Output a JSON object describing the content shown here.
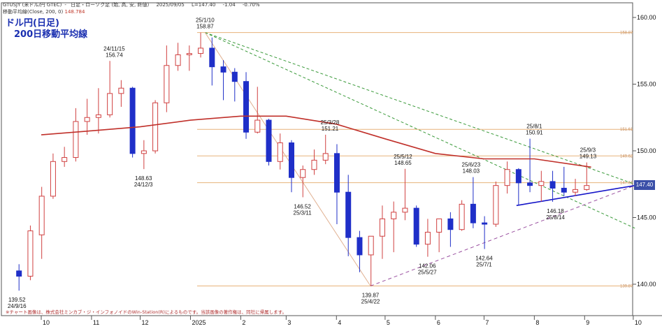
{
  "header": {
    "line1": [
      "GTUSJY (米ドル/円 GTEC)",
      "日足・ローソク足 (始, 高, 安, 終値)",
      "2025/09/05",
      "L=147.40",
      "-1.04",
      "-0.70%"
    ],
    "line2_label": "移動平均線(Close, 200, 0)",
    "line2_value": "148.784"
  },
  "title": {
    "line1": "ドル円(日足)",
    "line2": "200日移動平均線"
  },
  "footnote": "※チャート画像は、株式会社ミンカブ・ジ・インフォノイドのWin-Station(R)によるものです。当該画像の著作権は、同社に帰属します。",
  "last_price_label": "147.40",
  "colors": {
    "up": "#d04040",
    "down": "#1f2fc8",
    "ma": "#c0302a",
    "hline": "#e7b27a",
    "trend_green": "#3a9a3a",
    "trend_purple": "#9a50a0",
    "trend_blue": "#1515c8",
    "trend_tan": "#e0b090"
  },
  "chart_data": {
    "type": "candlestick",
    "x_ticks": [
      "10",
      "11",
      "12",
      "2025",
      "2",
      "3",
      "4",
      "5",
      "6",
      "7",
      "8",
      "9",
      "10"
    ],
    "y_ticks": [
      "160.00",
      "155.00",
      "150.00",
      "145.00",
      "140.00"
    ],
    "ylim": [
      138.5,
      161.5
    ],
    "hlines": [
      {
        "value": 158.87,
        "label": "158.87"
      },
      {
        "value": 151.61,
        "label": "151.61"
      },
      {
        "value": 149.62,
        "label": "149.62"
      },
      {
        "value": 147.61,
        "label": "147.61"
      },
      {
        "value": 139.87,
        "label": "139.87"
      }
    ],
    "annotations": [
      {
        "date": "24/9/16",
        "price": "139.52"
      },
      {
        "date": "24/11/15",
        "price": "156.74"
      },
      {
        "date": "24/12/3",
        "price": "148.63"
      },
      {
        "date": "25/1/10",
        "price": "158.87"
      },
      {
        "date": "25/3/11",
        "price": "146.52"
      },
      {
        "date": "25/3/28",
        "price": "151.21"
      },
      {
        "date": "25/4/22",
        "price": "139.87"
      },
      {
        "date": "25/5/12",
        "price": "148.65"
      },
      {
        "date": "25/5/27",
        "price": "142.06"
      },
      {
        "date": "25/6/23",
        "price": "148.03"
      },
      {
        "date": "25/7/1",
        "price": "142.64"
      },
      {
        "date": "25/8/1",
        "price": "150.91"
      },
      {
        "date": "25/8/14",
        "price": "146.18"
      },
      {
        "date": "25/9/3",
        "price": "149.13"
      }
    ],
    "series": [
      {
        "name": "移動平均線(Close, 200, 0)",
        "values": [
          {
            "date": "2024-10-01",
            "value": 151.2
          },
          {
            "date": "2024-11-01",
            "value": 151.5
          },
          {
            "date": "2024-12-01",
            "value": 151.8
          },
          {
            "date": "2025-01-01",
            "value": 152.3
          },
          {
            "date": "2025-02-01",
            "value": 152.6
          },
          {
            "date": "2025-03-01",
            "value": 152.6
          },
          {
            "date": "2025-04-01",
            "value": 152.0
          },
          {
            "date": "2025-05-01",
            "value": 150.9
          },
          {
            "date": "2025-06-01",
            "value": 149.8
          },
          {
            "date": "2025-07-01",
            "value": 149.4
          },
          {
            "date": "2025-08-01",
            "value": 149.4
          },
          {
            "date": "2025-09-05",
            "value": 148.78
          }
        ]
      }
    ],
    "candles": [
      {
        "date": "2024-09-16",
        "o": 141.0,
        "h": 141.5,
        "l": 139.52,
        "c": 140.6
      },
      {
        "date": "2024-09-23",
        "o": 140.6,
        "h": 144.4,
        "l": 140.3,
        "c": 144.0
      },
      {
        "date": "2024-09-30",
        "o": 143.7,
        "h": 147.3,
        "l": 141.9,
        "c": 146.6
      },
      {
        "date": "2024-10-07",
        "o": 146.6,
        "h": 149.8,
        "l": 146.4,
        "c": 149.2
      },
      {
        "date": "2024-10-14",
        "o": 149.2,
        "h": 150.3,
        "l": 148.8,
        "c": 149.5
      },
      {
        "date": "2024-10-21",
        "o": 149.5,
        "h": 153.2,
        "l": 149.2,
        "c": 152.2
      },
      {
        "date": "2024-10-28",
        "o": 152.2,
        "h": 153.9,
        "l": 151.2,
        "c": 152.5
      },
      {
        "date": "2024-11-04",
        "o": 152.5,
        "h": 154.7,
        "l": 151.3,
        "c": 152.7
      },
      {
        "date": "2024-11-11",
        "o": 152.7,
        "h": 156.74,
        "l": 152.5,
        "c": 154.3
      },
      {
        "date": "2024-11-18",
        "o": 154.3,
        "h": 155.3,
        "l": 153.3,
        "c": 154.7
      },
      {
        "date": "2024-11-25",
        "o": 154.7,
        "h": 154.8,
        "l": 149.5,
        "c": 149.8
      },
      {
        "date": "2024-12-02",
        "o": 149.8,
        "h": 150.8,
        "l": 148.63,
        "c": 150.0
      },
      {
        "date": "2024-12-09",
        "o": 150.0,
        "h": 153.8,
        "l": 149.8,
        "c": 153.6
      },
      {
        "date": "2024-12-16",
        "o": 153.6,
        "h": 157.9,
        "l": 152.9,
        "c": 156.4
      },
      {
        "date": "2024-12-23",
        "o": 156.4,
        "h": 158.1,
        "l": 156.0,
        "c": 157.2
      },
      {
        "date": "2024-12-30",
        "o": 157.2,
        "h": 157.9,
        "l": 156.0,
        "c": 157.3
      },
      {
        "date": "2025-01-06",
        "o": 157.3,
        "h": 158.87,
        "l": 157.0,
        "c": 157.7
      },
      {
        "date": "2025-01-13",
        "o": 157.7,
        "h": 158.5,
        "l": 154.9,
        "c": 156.3
      },
      {
        "date": "2025-01-20",
        "o": 156.3,
        "h": 156.8,
        "l": 153.8,
        "c": 155.9
      },
      {
        "date": "2025-01-27",
        "o": 155.9,
        "h": 156.2,
        "l": 153.7,
        "c": 155.2
      },
      {
        "date": "2025-02-03",
        "o": 155.2,
        "h": 155.9,
        "l": 150.9,
        "c": 151.4
      },
      {
        "date": "2025-02-10",
        "o": 151.4,
        "h": 154.8,
        "l": 151.3,
        "c": 152.3
      },
      {
        "date": "2025-02-17",
        "o": 152.3,
        "h": 152.4,
        "l": 148.9,
        "c": 149.2
      },
      {
        "date": "2025-02-24",
        "o": 149.2,
        "h": 151.3,
        "l": 148.6,
        "c": 150.6
      },
      {
        "date": "2025-03-03",
        "o": 150.6,
        "h": 150.8,
        "l": 146.9,
        "c": 148.0
      },
      {
        "date": "2025-03-10",
        "o": 148.0,
        "h": 148.9,
        "l": 146.52,
        "c": 148.6
      },
      {
        "date": "2025-03-17",
        "o": 148.6,
        "h": 150.1,
        "l": 148.2,
        "c": 149.3
      },
      {
        "date": "2025-03-24",
        "o": 149.3,
        "h": 151.21,
        "l": 149.0,
        "c": 149.8
      },
      {
        "date": "2025-03-31",
        "o": 149.8,
        "h": 150.5,
        "l": 144.5,
        "c": 146.9
      },
      {
        "date": "2025-04-07",
        "o": 146.9,
        "h": 148.2,
        "l": 142.1,
        "c": 143.5
      },
      {
        "date": "2025-04-14",
        "o": 143.5,
        "h": 144.0,
        "l": 140.9,
        "c": 142.2
      },
      {
        "date": "2025-04-21",
        "o": 142.2,
        "h": 143.6,
        "l": 139.87,
        "c": 143.6
      },
      {
        "date": "2025-04-28",
        "o": 143.6,
        "h": 145.9,
        "l": 141.9,
        "c": 144.9
      },
      {
        "date": "2025-05-05",
        "o": 144.9,
        "h": 146.2,
        "l": 142.4,
        "c": 145.4
      },
      {
        "date": "2025-05-12",
        "o": 145.4,
        "h": 148.65,
        "l": 144.8,
        "c": 145.7
      },
      {
        "date": "2025-05-19",
        "o": 145.7,
        "h": 145.9,
        "l": 142.8,
        "c": 143.0
      },
      {
        "date": "2025-05-26",
        "o": 143.0,
        "h": 144.9,
        "l": 142.06,
        "c": 143.9
      },
      {
        "date": "2025-06-02",
        "o": 143.9,
        "h": 144.9,
        "l": 142.4,
        "c": 144.9
      },
      {
        "date": "2025-06-09",
        "o": 144.9,
        "h": 145.4,
        "l": 142.8,
        "c": 144.1
      },
      {
        "date": "2025-06-16",
        "o": 144.1,
        "h": 146.3,
        "l": 144.0,
        "c": 146.0
      },
      {
        "date": "2025-06-23",
        "o": 146.0,
        "h": 148.03,
        "l": 144.2,
        "c": 144.6
      },
      {
        "date": "2025-06-30",
        "o": 144.6,
        "h": 145.1,
        "l": 142.64,
        "c": 144.5
      },
      {
        "date": "2025-07-07",
        "o": 144.5,
        "h": 147.7,
        "l": 144.3,
        "c": 147.4
      },
      {
        "date": "2025-07-14",
        "o": 147.4,
        "h": 149.2,
        "l": 146.8,
        "c": 148.6
      },
      {
        "date": "2025-07-21",
        "o": 148.6,
        "h": 148.7,
        "l": 145.9,
        "c": 147.6
      },
      {
        "date": "2025-07-28",
        "o": 147.6,
        "h": 150.91,
        "l": 146.9,
        "c": 147.4
      },
      {
        "date": "2025-08-04",
        "o": 147.4,
        "h": 148.5,
        "l": 146.2,
        "c": 147.7
      },
      {
        "date": "2025-08-11",
        "o": 147.7,
        "h": 148.5,
        "l": 146.18,
        "c": 147.2
      },
      {
        "date": "2025-08-18",
        "o": 147.2,
        "h": 148.8,
        "l": 146.6,
        "c": 146.9
      },
      {
        "date": "2025-08-25",
        "o": 146.9,
        "h": 147.9,
        "l": 146.6,
        "c": 147.1
      },
      {
        "date": "2025-09-01",
        "o": 147.1,
        "h": 149.13,
        "l": 147.0,
        "c": 147.4
      }
    ]
  }
}
